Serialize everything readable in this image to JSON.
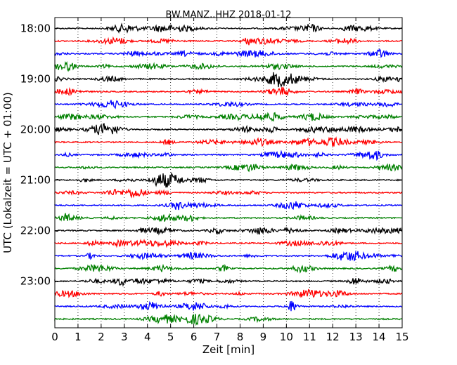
{
  "chart_data": {
    "type": "line",
    "title": "BW.MANZ..HHZ 2018-01-12",
    "xlabel": "Zeit  [min]",
    "ylabel": "UTC (Lokalzeit = UTC + 01:00)",
    "xlim": [
      0,
      15
    ],
    "x_ticks": [
      "0",
      "1",
      "2",
      "3",
      "4",
      "5",
      "6",
      "7",
      "8",
      "9",
      "10",
      "11",
      "12",
      "13",
      "14",
      "15"
    ],
    "y_tick_labels": [
      "18:00",
      "19:00",
      "20:00",
      "21:00",
      "22:00",
      "23:00"
    ],
    "grid": "vertical-dotted",
    "trace_interval_minutes": 15,
    "start_time": "18:00",
    "trace_count": 24,
    "trace_colors": [
      "#000000",
      "#ff0000",
      "#0000ff",
      "#008000"
    ]
  }
}
